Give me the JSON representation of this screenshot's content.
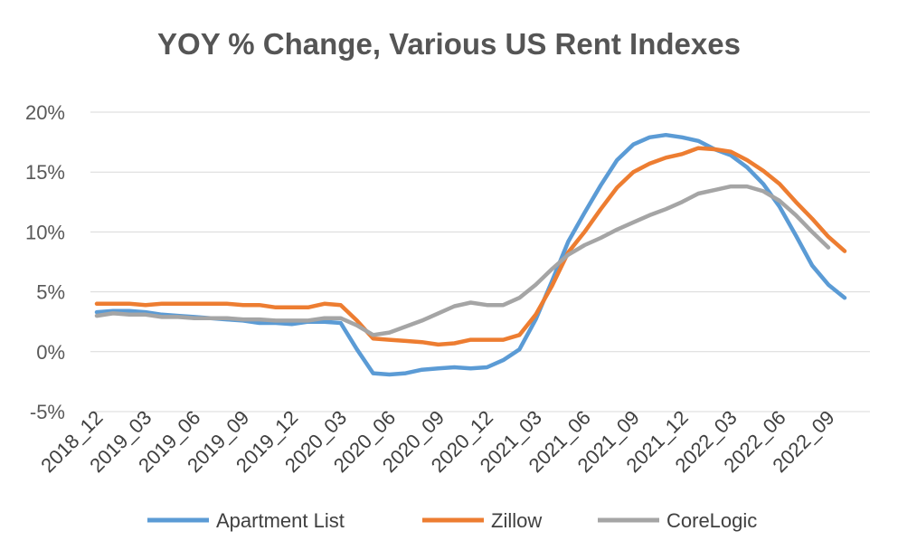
{
  "chart_data": {
    "type": "line",
    "title": "YOY % Change, Various US Rent Indexes",
    "xlabel": "",
    "ylabel": "",
    "ylim": [
      -5,
      20
    ],
    "y_ticks": [
      "-5%",
      "0%",
      "5%",
      "10%",
      "15%",
      "20%"
    ],
    "y_tick_values": [
      -5,
      0,
      5,
      10,
      15,
      20
    ],
    "grid": "horizontal",
    "legend_position": "bottom",
    "x_tick_labels": [
      "2018_12",
      "2019_03",
      "2019_06",
      "2019_09",
      "2019_12",
      "2020_03",
      "2020_06",
      "2020_09",
      "2020_12",
      "2021_03",
      "2021_06",
      "2021_09",
      "2021_12",
      "2022_03",
      "2022_06",
      "2022_09"
    ],
    "x": [
      "2018_12",
      "2019_01",
      "2019_02",
      "2019_03",
      "2019_04",
      "2019_05",
      "2019_06",
      "2019_07",
      "2019_08",
      "2019_09",
      "2019_10",
      "2019_11",
      "2019_12",
      "2020_01",
      "2020_02",
      "2020_03",
      "2020_04",
      "2020_05",
      "2020_06",
      "2020_07",
      "2020_08",
      "2020_09",
      "2020_10",
      "2020_11",
      "2020_12",
      "2021_01",
      "2021_02",
      "2021_03",
      "2021_04",
      "2021_05",
      "2021_06",
      "2021_07",
      "2021_08",
      "2021_09",
      "2021_10",
      "2021_11",
      "2021_12",
      "2022_01",
      "2022_02",
      "2022_03",
      "2022_04",
      "2022_05",
      "2022_06",
      "2022_07",
      "2022_08",
      "2022_09",
      "2022_10",
      "2022_11"
    ],
    "series": [
      {
        "name": "Apartment List",
        "color": "#5B9BD5",
        "values": [
          3.3,
          3.4,
          3.4,
          3.3,
          3.1,
          3.0,
          2.9,
          2.8,
          2.7,
          2.6,
          2.4,
          2.4,
          2.3,
          2.5,
          2.5,
          2.4,
          0.2,
          -1.8,
          -1.9,
          -1.8,
          -1.5,
          -1.4,
          -1.3,
          -1.4,
          -1.3,
          -0.7,
          0.2,
          2.7,
          5.9,
          9.2,
          11.6,
          13.9,
          16.0,
          17.3,
          17.9,
          18.1,
          17.9,
          17.6,
          16.9,
          16.4,
          15.4,
          14.0,
          12.1,
          9.7,
          7.2,
          5.6,
          4.5,
          null
        ]
      },
      {
        "name": "Zillow",
        "color": "#ED7D31",
        "values": [
          4.0,
          4.0,
          4.0,
          3.9,
          4.0,
          4.0,
          4.0,
          4.0,
          4.0,
          3.9,
          3.9,
          3.7,
          3.7,
          3.7,
          4.0,
          3.9,
          2.6,
          1.1,
          1.0,
          0.9,
          0.8,
          0.6,
          0.7,
          1.0,
          1.0,
          1.0,
          1.4,
          3.1,
          5.5,
          8.3,
          10.0,
          11.9,
          13.7,
          15.0,
          15.7,
          16.2,
          16.5,
          17.0,
          16.9,
          16.7,
          16.0,
          15.1,
          14.0,
          12.5,
          11.1,
          9.6,
          8.4,
          null
        ]
      },
      {
        "name": "CoreLogic",
        "color": "#A5A5A5",
        "values": [
          3.0,
          3.2,
          3.1,
          3.1,
          2.9,
          2.9,
          2.8,
          2.8,
          2.8,
          2.7,
          2.7,
          2.6,
          2.6,
          2.6,
          2.8,
          2.8,
          2.2,
          1.4,
          1.6,
          2.1,
          2.6,
          3.2,
          3.8,
          4.1,
          3.9,
          3.9,
          4.5,
          5.6,
          6.9,
          8.1,
          8.9,
          9.5,
          10.2,
          10.8,
          11.4,
          11.9,
          12.5,
          13.2,
          13.5,
          13.8,
          13.8,
          13.4,
          12.6,
          11.4,
          10.0,
          8.7,
          null,
          null
        ]
      }
    ]
  }
}
